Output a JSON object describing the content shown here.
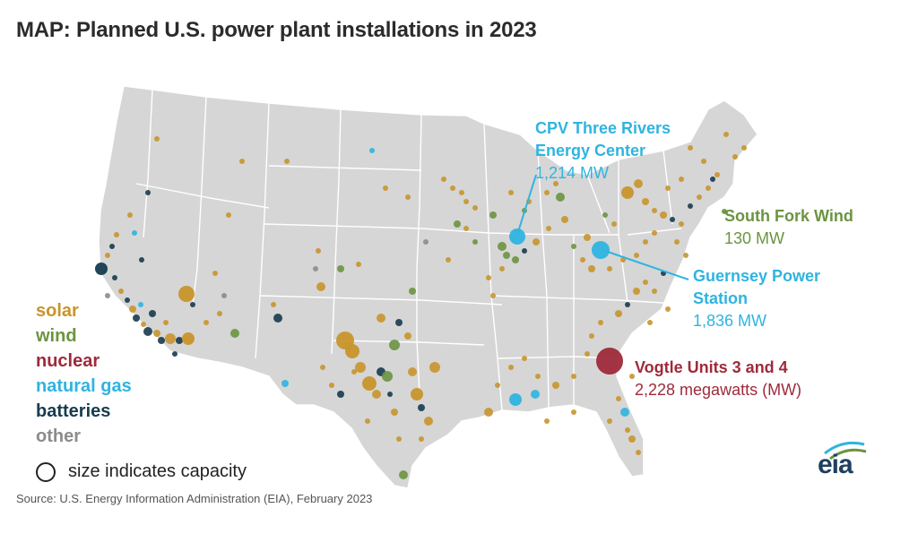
{
  "title": "MAP: Planned U.S. power plant installations in 2023",
  "source": "Source: U.S. Energy Information Administration (EIA), February 2023",
  "legend": {
    "items": [
      {
        "label": "solar",
        "color": "#c8952c"
      },
      {
        "label": "wind",
        "color": "#6b9440"
      },
      {
        "label": "nuclear",
        "color": "#9e2a3b"
      },
      {
        "label": "natural gas",
        "color": "#2fb4e0"
      },
      {
        "label": "batteries",
        "color": "#173b4f"
      },
      {
        "label": "other",
        "color": "#8c8c8c"
      }
    ],
    "size_note": "size indicates capacity"
  },
  "callouts": {
    "cpv": {
      "name1": "CPV Three Rivers",
      "name2": "Energy Center",
      "value": "1,214 MW",
      "color": "#2fb4e0"
    },
    "southfork": {
      "name": "South Fork Wind",
      "value": "130 MW",
      "color": "#6b9440"
    },
    "guernsey": {
      "name1": "Guernsey Power",
      "name2": "Station",
      "value": "1,836 MW",
      "color": "#2fb4e0"
    },
    "vogtle": {
      "name": "Vogtle Units 3 and 4",
      "value": "2,228 megawatts (MW)",
      "color": "#9e2a3b"
    }
  },
  "logo": {
    "text": "eia"
  },
  "map_colors": {
    "land": "#d6d6d6",
    "border": "#ffffff"
  }
}
